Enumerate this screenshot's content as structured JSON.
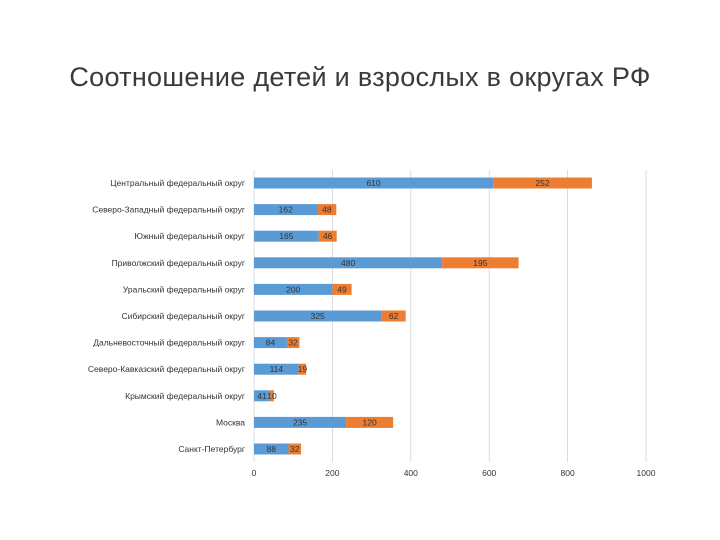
{
  "chart_data": {
    "type": "bar",
    "orientation": "horizontal",
    "stacked": true,
    "title": "Соотношение детей и взрослых в округах РФ",
    "categories": [
      "Центральный федеральный округ",
      "Северо-Западный федеральный округ",
      "Южный федеральный округ",
      "Приволжский федеральный округ",
      "Уральский федеральный округ",
      "Сибирский федеральный округ",
      "Дальневосточный федеральный округ",
      "Северо-Кавказский федеральный округ",
      "Крымский федеральный округ",
      "Москва",
      "Санкт-Петербург"
    ],
    "series": [
      {
        "values": [
          610,
          162,
          165,
          480,
          200,
          325,
          84,
          114,
          41,
          235,
          88
        ],
        "color": "#5b9bd5"
      },
      {
        "values": [
          252,
          48,
          46,
          195,
          49,
          62,
          32,
          19,
          10,
          120,
          32
        ],
        "color": "#ed7d31"
      }
    ],
    "xlim": [
      0,
      1000
    ],
    "xticks": [
      0,
      200,
      400,
      600,
      800,
      1000
    ],
    "grid": true
  }
}
